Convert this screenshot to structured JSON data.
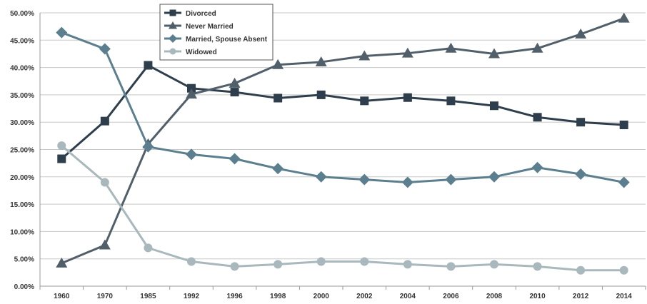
{
  "chart_data": {
    "type": "line",
    "categories": [
      "1960",
      "1970",
      "1985",
      "1992",
      "1996",
      "1998",
      "2000",
      "2002",
      "2004",
      "2006",
      "2008",
      "2010",
      "2012",
      "2014"
    ],
    "ylim": [
      0,
      50
    ],
    "y_ticks": [
      "0.00%",
      "5.00%",
      "10.00%",
      "15.00%",
      "20.00%",
      "25.00%",
      "30.00%",
      "35.00%",
      "40.00%",
      "45.00%",
      "50.00%"
    ],
    "grid": "horizontal",
    "legend_position": "top-center",
    "series": [
      {
        "name": "Divorced",
        "color": "#2e3e4c",
        "marker": "square",
        "values": [
          23.3,
          30.2,
          40.4,
          36.2,
          35.5,
          34.4,
          35.0,
          33.9,
          34.5,
          33.9,
          33.0,
          30.9,
          30.0,
          29.5
        ]
      },
      {
        "name": "Never Married",
        "color": "#515f6b",
        "marker": "triangle",
        "values": [
          4.2,
          7.5,
          26.0,
          35.1,
          37.1,
          40.5,
          41.0,
          42.1,
          42.6,
          43.5,
          42.5,
          43.5,
          46.1,
          49.0
        ]
      },
      {
        "name": "Married, Spouse Absent",
        "color": "#5b7f8e",
        "marker": "diamond",
        "values": [
          46.4,
          43.4,
          25.5,
          24.1,
          23.3,
          21.5,
          20.0,
          19.5,
          19.0,
          19.5,
          20.0,
          21.7,
          20.5,
          19.0
        ]
      },
      {
        "name": "Widowed",
        "color": "#a8b8bc",
        "marker": "circle",
        "values": [
          25.7,
          19.0,
          7.0,
          4.5,
          3.6,
          4.0,
          4.5,
          4.5,
          4.0,
          3.6,
          4.0,
          3.6,
          2.9,
          2.9
        ]
      }
    ]
  }
}
